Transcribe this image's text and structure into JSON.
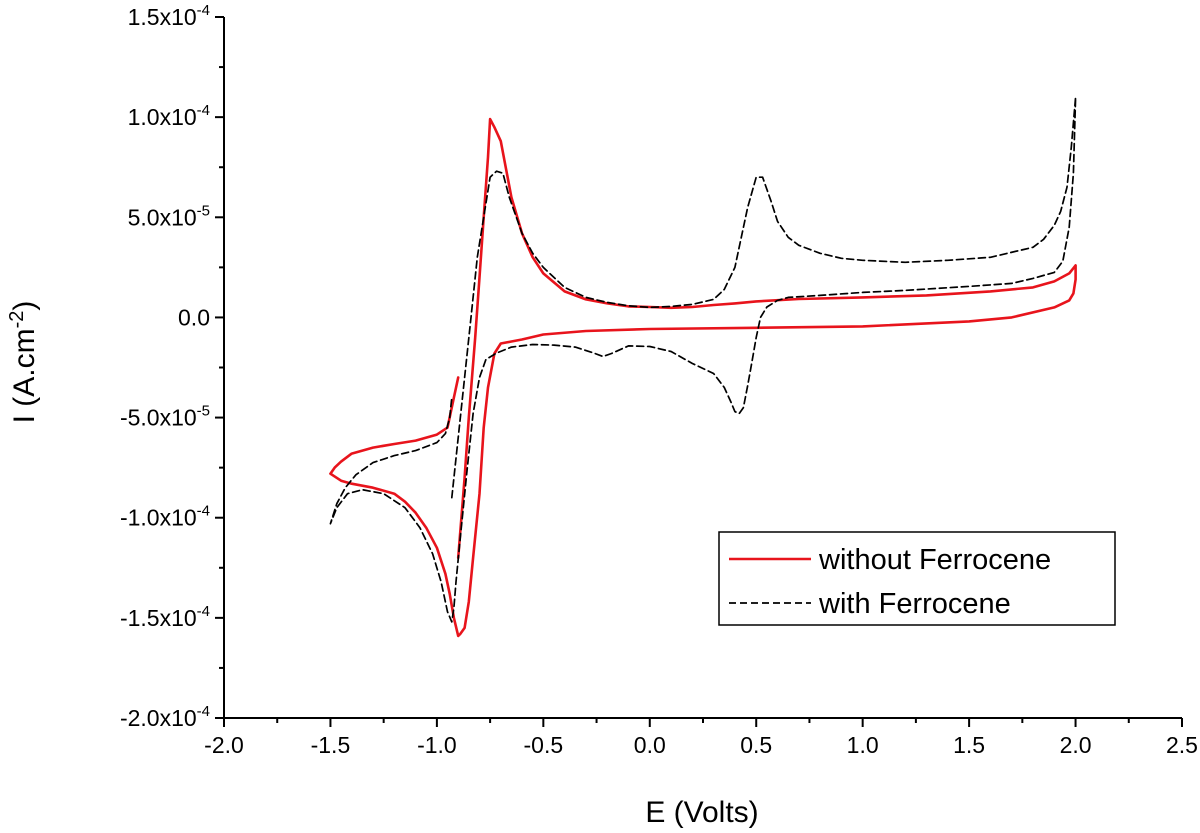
{
  "chart_data": {
    "type": "line",
    "title": "",
    "xlabel": "E (Volts)",
    "ylabel": "I (A.cm",
    "ylabel_sup": "-2",
    "ylabel_close": ")",
    "xlim": [
      -2.0,
      2.5
    ],
    "ylim": [
      -0.0002,
      0.00015
    ],
    "x_ticks": [
      {
        "value": -2.0,
        "label": "-2.0"
      },
      {
        "value": -1.5,
        "label": "-1.5"
      },
      {
        "value": -1.0,
        "label": "-1.0"
      },
      {
        "value": -0.5,
        "label": "-0.5"
      },
      {
        "value": 0.0,
        "label": "0.0"
      },
      {
        "value": 0.5,
        "label": "0.5"
      },
      {
        "value": 1.0,
        "label": "1.0"
      },
      {
        "value": 1.5,
        "label": "1.5"
      },
      {
        "value": 2.0,
        "label": "2.0"
      },
      {
        "value": 2.5,
        "label": "2.5"
      }
    ],
    "y_ticks": [
      {
        "value": 0.00015,
        "mant": "1.5x10",
        "exp": "-4"
      },
      {
        "value": 0.0001,
        "mant": "1.0x10",
        "exp": "-4"
      },
      {
        "value": 5e-05,
        "mant": "5.0x10",
        "exp": "-5"
      },
      {
        "value": 0.0,
        "mant": "0.0",
        "exp": ""
      },
      {
        "value": -5e-05,
        "mant": "-5.0x10",
        "exp": "-5"
      },
      {
        "value": -0.0001,
        "mant": "-1.0x10",
        "exp": "-4"
      },
      {
        "value": -0.00015,
        "mant": "-1.5x10",
        "exp": "-4"
      },
      {
        "value": -0.0002,
        "mant": "-2.0x10",
        "exp": "-4"
      }
    ],
    "grid": false,
    "legend_position": "bottom-right",
    "series": [
      {
        "name": "without Ferrocene",
        "color": "#e8141c",
        "style": "solid",
        "x": [
          -0.9,
          -0.87,
          -0.85,
          -0.82,
          -0.8,
          -0.78,
          -0.76,
          -0.75,
          -0.73,
          -0.7,
          -0.65,
          -0.6,
          -0.55,
          -0.5,
          -0.4,
          -0.3,
          -0.2,
          -0.1,
          0.0,
          0.1,
          0.2,
          0.3,
          0.4,
          0.5,
          0.7,
          1.0,
          1.3,
          1.6,
          1.8,
          1.9,
          1.97,
          2.0,
          2.0,
          1.99,
          1.97,
          1.9,
          1.7,
          1.5,
          1.0,
          0.5,
          0.0,
          -0.3,
          -0.5,
          -0.6,
          -0.65,
          -0.7,
          -0.73,
          -0.76,
          -0.78,
          -0.8,
          -0.83,
          -0.85,
          -0.87,
          -0.89,
          -0.9,
          -0.92,
          -0.94,
          -0.96,
          -1.0,
          -1.05,
          -1.1,
          -1.15,
          -1.2,
          -1.3,
          -1.4,
          -1.45,
          -1.5,
          -1.48,
          -1.45,
          -1.4,
          -1.3,
          -1.2,
          -1.1,
          -1.0,
          -0.95,
          -0.92,
          -0.9
        ],
        "y": [
          -0.00012,
          -8e-05,
          -5e-05,
          -1e-05,
          2e-05,
          5e-05,
          8e-05,
          9.9e-05,
          9.5e-05,
          8.8e-05,
          6e-05,
          4.2e-05,
          3e-05,
          2.2e-05,
          1.3e-05,
          9e-06,
          7e-06,
          5.5e-06,
          5.2e-06,
          4.8e-06,
          5.2e-06,
          6.2e-06,
          7e-06,
          8e-06,
          9.2e-06,
          1e-05,
          1.1e-05,
          1.3e-05,
          1.5e-05,
          1.8e-05,
          2.2e-05,
          2.6e-05,
          1.9e-05,
          1.2e-05,
          8.5e-06,
          5e-06,
          0.0,
          -2e-06,
          -4.5e-06,
          -5.2e-06,
          -5.8e-06,
          -6.8e-06,
          -8.5e-06,
          -1.1e-05,
          -1.2e-05,
          -1.3e-05,
          -1.8e-05,
          -3.5e-05,
          -5.5e-05,
          -8.8e-05,
          -0.00012,
          -0.000142,
          -0.000155,
          -0.000158,
          -0.000159,
          -0.00015,
          -0.000138,
          -0.000128,
          -0.000115,
          -0.000105,
          -9.75e-05,
          -9.2e-05,
          -8.8e-05,
          -8.5e-05,
          -8.3e-05,
          -8.15e-05,
          -7.8e-05,
          -7.5e-05,
          -7.2e-05,
          -6.8e-05,
          -6.5e-05,
          -6.32e-05,
          -6.15e-05,
          -5.85e-05,
          -5.5e-05,
          -4e-05,
          -3e-05
        ],
        "closed": false
      },
      {
        "name": "with Ferrocene",
        "color": "#000000",
        "style": "dashed",
        "x": [
          -0.93,
          -0.9,
          -0.87,
          -0.84,
          -0.81,
          -0.78,
          -0.75,
          -0.72,
          -0.69,
          -0.66,
          -0.6,
          -0.55,
          -0.5,
          -0.4,
          -0.3,
          -0.2,
          -0.1,
          0.0,
          0.1,
          0.2,
          0.3,
          0.35,
          0.4,
          0.43,
          0.46,
          0.5,
          0.53,
          0.57,
          0.6,
          0.65,
          0.7,
          0.8,
          0.9,
          1.0,
          1.2,
          1.4,
          1.6,
          1.8,
          1.85,
          1.9,
          1.93,
          1.96,
          1.98,
          2.0,
          1.99,
          1.97,
          1.94,
          1.9,
          1.8,
          1.7,
          1.5,
          1.2,
          1.0,
          0.8,
          0.65,
          0.6,
          0.55,
          0.52,
          0.5,
          0.48,
          0.46,
          0.44,
          0.42,
          0.4,
          0.38,
          0.35,
          0.3,
          0.2,
          0.1,
          0.0,
          -0.1,
          -0.18,
          -0.22,
          -0.27,
          -0.35,
          -0.45,
          -0.55,
          -0.65,
          -0.72,
          -0.77,
          -0.8,
          -0.83,
          -0.86,
          -0.89,
          -0.91,
          -0.92,
          -0.93,
          -0.95,
          -0.98,
          -1.02,
          -1.08,
          -1.15,
          -1.25,
          -1.35,
          -1.42,
          -1.47,
          -1.5,
          -1.47,
          -1.43,
          -1.38,
          -1.3,
          -1.2,
          -1.1,
          -1.0,
          -0.96,
          -0.94,
          -0.93
        ],
        "y": [
          -9e-05,
          -6e-05,
          -3e-05,
          0.0,
          3e-05,
          5e-05,
          7e-05,
          7.3e-05,
          7.2e-05,
          6e-05,
          4.2e-05,
          3.2e-05,
          2.5e-05,
          1.5e-05,
          1e-05,
          7.5e-06,
          5.8e-06,
          5e-06,
          5.5e-06,
          6.5e-06,
          9e-06,
          1.4e-05,
          2.5e-05,
          4e-05,
          5.5e-05,
          7e-05,
          7e-05,
          5.8e-05,
          4.8e-05,
          4e-05,
          3.6e-05,
          3.2e-05,
          2.95e-05,
          2.85e-05,
          2.75e-05,
          2.85e-05,
          3e-05,
          3.5e-05,
          3.9e-05,
          4.6e-05,
          5.3e-05,
          6.5e-05,
          8.5e-05,
          0.00011,
          7.2e-05,
          4.5e-05,
          2.8e-05,
          2.25e-05,
          1.95e-05,
          1.7e-05,
          1.55e-05,
          1.35e-05,
          1.25e-05,
          1.1e-05,
          1e-05,
          8.5e-06,
          5.2e-06,
          0.0,
          -1e-05,
          -2.2e-05,
          -3.4e-05,
          -4.5e-05,
          -4.8e-05,
          -4.7e-05,
          -4.2e-05,
          -3.5e-05,
          -2.8e-05,
          -2.3e-05,
          -1.7e-05,
          -1.45e-05,
          -1.42e-05,
          -1.8e-05,
          -1.95e-05,
          -1.75e-05,
          -1.48e-05,
          -1.38e-05,
          -1.35e-05,
          -1.48e-05,
          -1.78e-05,
          -2.1e-05,
          -3e-05,
          -4.8e-05,
          -7.8e-05,
          -0.00011,
          -0.000132,
          -0.000145,
          -0.000152,
          -0.000147,
          -0.000132,
          -0.000118,
          -0.000105,
          -9.5e-05,
          -8.8e-05,
          -8.6e-05,
          -8.8e-05,
          -9.5e-05,
          -0.000103,
          -9.3e-05,
          -8.5e-05,
          -7.85e-05,
          -7.25e-05,
          -6.9e-05,
          -6.65e-05,
          -6.25e-05,
          -5.8e-05,
          -5e-05,
          -4e-05
        ],
        "closed": false
      }
    ]
  }
}
